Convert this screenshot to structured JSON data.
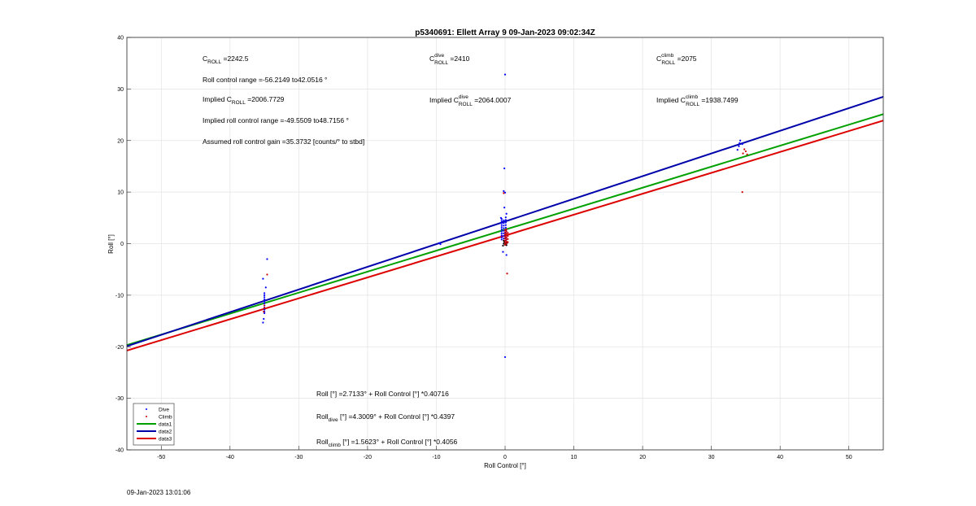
{
  "chart_data": {
    "type": "scatter",
    "title": "p5340691: Ellett Array 9 09-Jan-2023 09:02:34Z",
    "xlabel": "Roll Control [°]",
    "ylabel": "Roll [°]",
    "xlim": [
      -55,
      55
    ],
    "ylim": [
      -40,
      40
    ],
    "grid": true,
    "xticks": [
      -50,
      -40,
      -30,
      -20,
      -10,
      0,
      10,
      20,
      30,
      40,
      50
    ],
    "yticks": [
      -40,
      -30,
      -20,
      -10,
      0,
      10,
      20,
      30,
      40
    ],
    "legend_position": "bottom-left",
    "colors": {
      "dive": "#0000ff",
      "climb": "#cc0000",
      "data1": "#00a000",
      "data2": "#0000aa",
      "data3": "#dd0000",
      "black_cluster": "#000000"
    },
    "series": [
      {
        "name": "Dive",
        "kind": "points",
        "color": "#0000ff",
        "points": [
          [
            -35,
            -9.6
          ],
          [
            -35,
            -10
          ],
          [
            -35,
            -10.4
          ],
          [
            -35,
            -10.8
          ],
          [
            -35,
            -11.2
          ],
          [
            -35,
            -11.6
          ],
          [
            -35,
            -12
          ],
          [
            -35,
            -12.4
          ],
          [
            -35,
            -12.8
          ],
          [
            -35,
            -13.2
          ],
          [
            -35,
            -13.5
          ],
          [
            -35.1,
            -14.6
          ],
          [
            -35.2,
            -15.3
          ],
          [
            -35.2,
            -6.8
          ],
          [
            -34.6,
            -3
          ],
          [
            -34.8,
            -8.5
          ],
          [
            -9.5,
            0.1
          ],
          [
            -9.4,
            -0.1
          ],
          [
            -0.5,
            0.8
          ],
          [
            -0.5,
            1.2
          ],
          [
            -0.5,
            1.6
          ],
          [
            -0.5,
            2
          ],
          [
            -0.5,
            2.4
          ],
          [
            -0.5,
            2.8
          ],
          [
            -0.5,
            3.2
          ],
          [
            -0.5,
            3.6
          ],
          [
            -0.5,
            4
          ],
          [
            -0.5,
            4.4
          ],
          [
            -0.5,
            4.8
          ],
          [
            -0.6,
            5
          ],
          [
            -0.2,
            1
          ],
          [
            -0.2,
            1.5
          ],
          [
            -0.2,
            2
          ],
          [
            -0.2,
            2.5
          ],
          [
            -0.2,
            3
          ],
          [
            -0.2,
            3.5
          ],
          [
            -0.2,
            4
          ],
          [
            -0.2,
            4.5
          ],
          [
            0.1,
            0.6
          ],
          [
            0.1,
            1.1
          ],
          [
            0.1,
            1.6
          ],
          [
            0.1,
            2.1
          ],
          [
            0.1,
            2.6
          ],
          [
            0.1,
            3.1
          ],
          [
            0.1,
            3.6
          ],
          [
            0.1,
            4.1
          ],
          [
            0.1,
            4.6
          ],
          [
            0.1,
            5.1
          ],
          [
            0,
            32.8
          ],
          [
            -0.1,
            14.6
          ],
          [
            -0.2,
            10.2
          ],
          [
            0,
            9.9
          ],
          [
            -0.1,
            7
          ],
          [
            0.2,
            5.8
          ],
          [
            -0.3,
            -1.6
          ],
          [
            0.2,
            -2.2
          ],
          [
            0,
            -22
          ],
          [
            33.8,
            18.2
          ],
          [
            34,
            18.9
          ],
          [
            34.1,
            19.5
          ],
          [
            34.2,
            20
          ],
          [
            34.5,
            19.3
          ]
        ]
      },
      {
        "name": "Climb",
        "kind": "points",
        "color": "#cc0000",
        "points": [
          [
            -35,
            -12
          ],
          [
            -35,
            -12.5
          ],
          [
            -35.1,
            -13.2
          ],
          [
            -34.6,
            -6
          ],
          [
            0,
            -0.2
          ],
          [
            0,
            0.2
          ],
          [
            0,
            0.6
          ],
          [
            0,
            1
          ],
          [
            0,
            1.4
          ],
          [
            0,
            1.8
          ],
          [
            0,
            2.2
          ],
          [
            0,
            2.6
          ],
          [
            0.2,
            0
          ],
          [
            0.2,
            0.4
          ],
          [
            0.2,
            0.8
          ],
          [
            0.2,
            1.2
          ],
          [
            0.2,
            1.6
          ],
          [
            0.2,
            2
          ],
          [
            0.2,
            2.4
          ],
          [
            0.2,
            2.8
          ],
          [
            0.4,
            0.3
          ],
          [
            0.4,
            0.9
          ],
          [
            0.4,
            1.5
          ],
          [
            0.4,
            2.1
          ],
          [
            -0.2,
            9.8
          ],
          [
            0.3,
            -5.8
          ],
          [
            34.5,
            10
          ],
          [
            34.6,
            17.5
          ],
          [
            35,
            17.9
          ],
          [
            35.2,
            17.3
          ],
          [
            34.8,
            18.3
          ]
        ]
      },
      {
        "name": "data1",
        "kind": "line",
        "color": "#00a000",
        "intercept": 2.7133,
        "slope": 0.40716
      },
      {
        "name": "data2",
        "kind": "line",
        "color": "#0000aa",
        "intercept": 4.3009,
        "slope": 0.4397
      },
      {
        "name": "data3",
        "kind": "line",
        "color": "#dd0000",
        "intercept": 1.5623,
        "slope": 0.4056
      }
    ],
    "black_cluster_points": [
      [
        -0.3,
        -0.4
      ],
      [
        -0.2,
        0
      ],
      [
        -0.1,
        0.3
      ],
      [
        0,
        -0.2
      ],
      [
        0.1,
        0.1
      ],
      [
        0.2,
        -0.3
      ],
      [
        0.3,
        0.2
      ],
      [
        -0.2,
        0.6
      ]
    ],
    "annotations": {
      "c_roll": {
        "main": "C",
        "sub": "ROLL",
        "rest": " =2242.5"
      },
      "roll_range": "Roll control range =-56.2149 to42.0516 °",
      "implied_c_roll": {
        "pre": "Implied C",
        "sub": "ROLL",
        "rest": " =2006.7729"
      },
      "implied_range": "Implied roll control range =-49.5509 to48.7156 °",
      "gain": "Assumed roll control gain =35.3732 [counts/° to stbd]",
      "c_dive": {
        "main": "C",
        "sup": "dive",
        "sub": "ROLL",
        "rest": " =2410"
      },
      "implied_c_dive": {
        "pre": "Implied C",
        "sup": "dive",
        "sub": "ROLL",
        "rest": " =2064.0007"
      },
      "c_climb": {
        "main": "C",
        "sup": "climb",
        "sub": "ROLL",
        "rest": " =2075"
      },
      "implied_c_climb": {
        "pre": "Implied C",
        "sup": "climb",
        "sub": "ROLL",
        "rest": " =1938.7499"
      },
      "eq_all": "Roll [°] =2.7133° + Roll Control [°] *0.40716",
      "eq_dive": {
        "pre": "Roll",
        "sub": "dive",
        "rest": " [°] =4.3009° + Roll Control [°] *0.4397"
      },
      "eq_climb": {
        "pre": "Roll",
        "sub": "climb",
        "rest": " [°] =1.5623° + Roll Control [°] *0.4056"
      }
    },
    "timestamp": "09-Jan-2023 13:01:06"
  }
}
